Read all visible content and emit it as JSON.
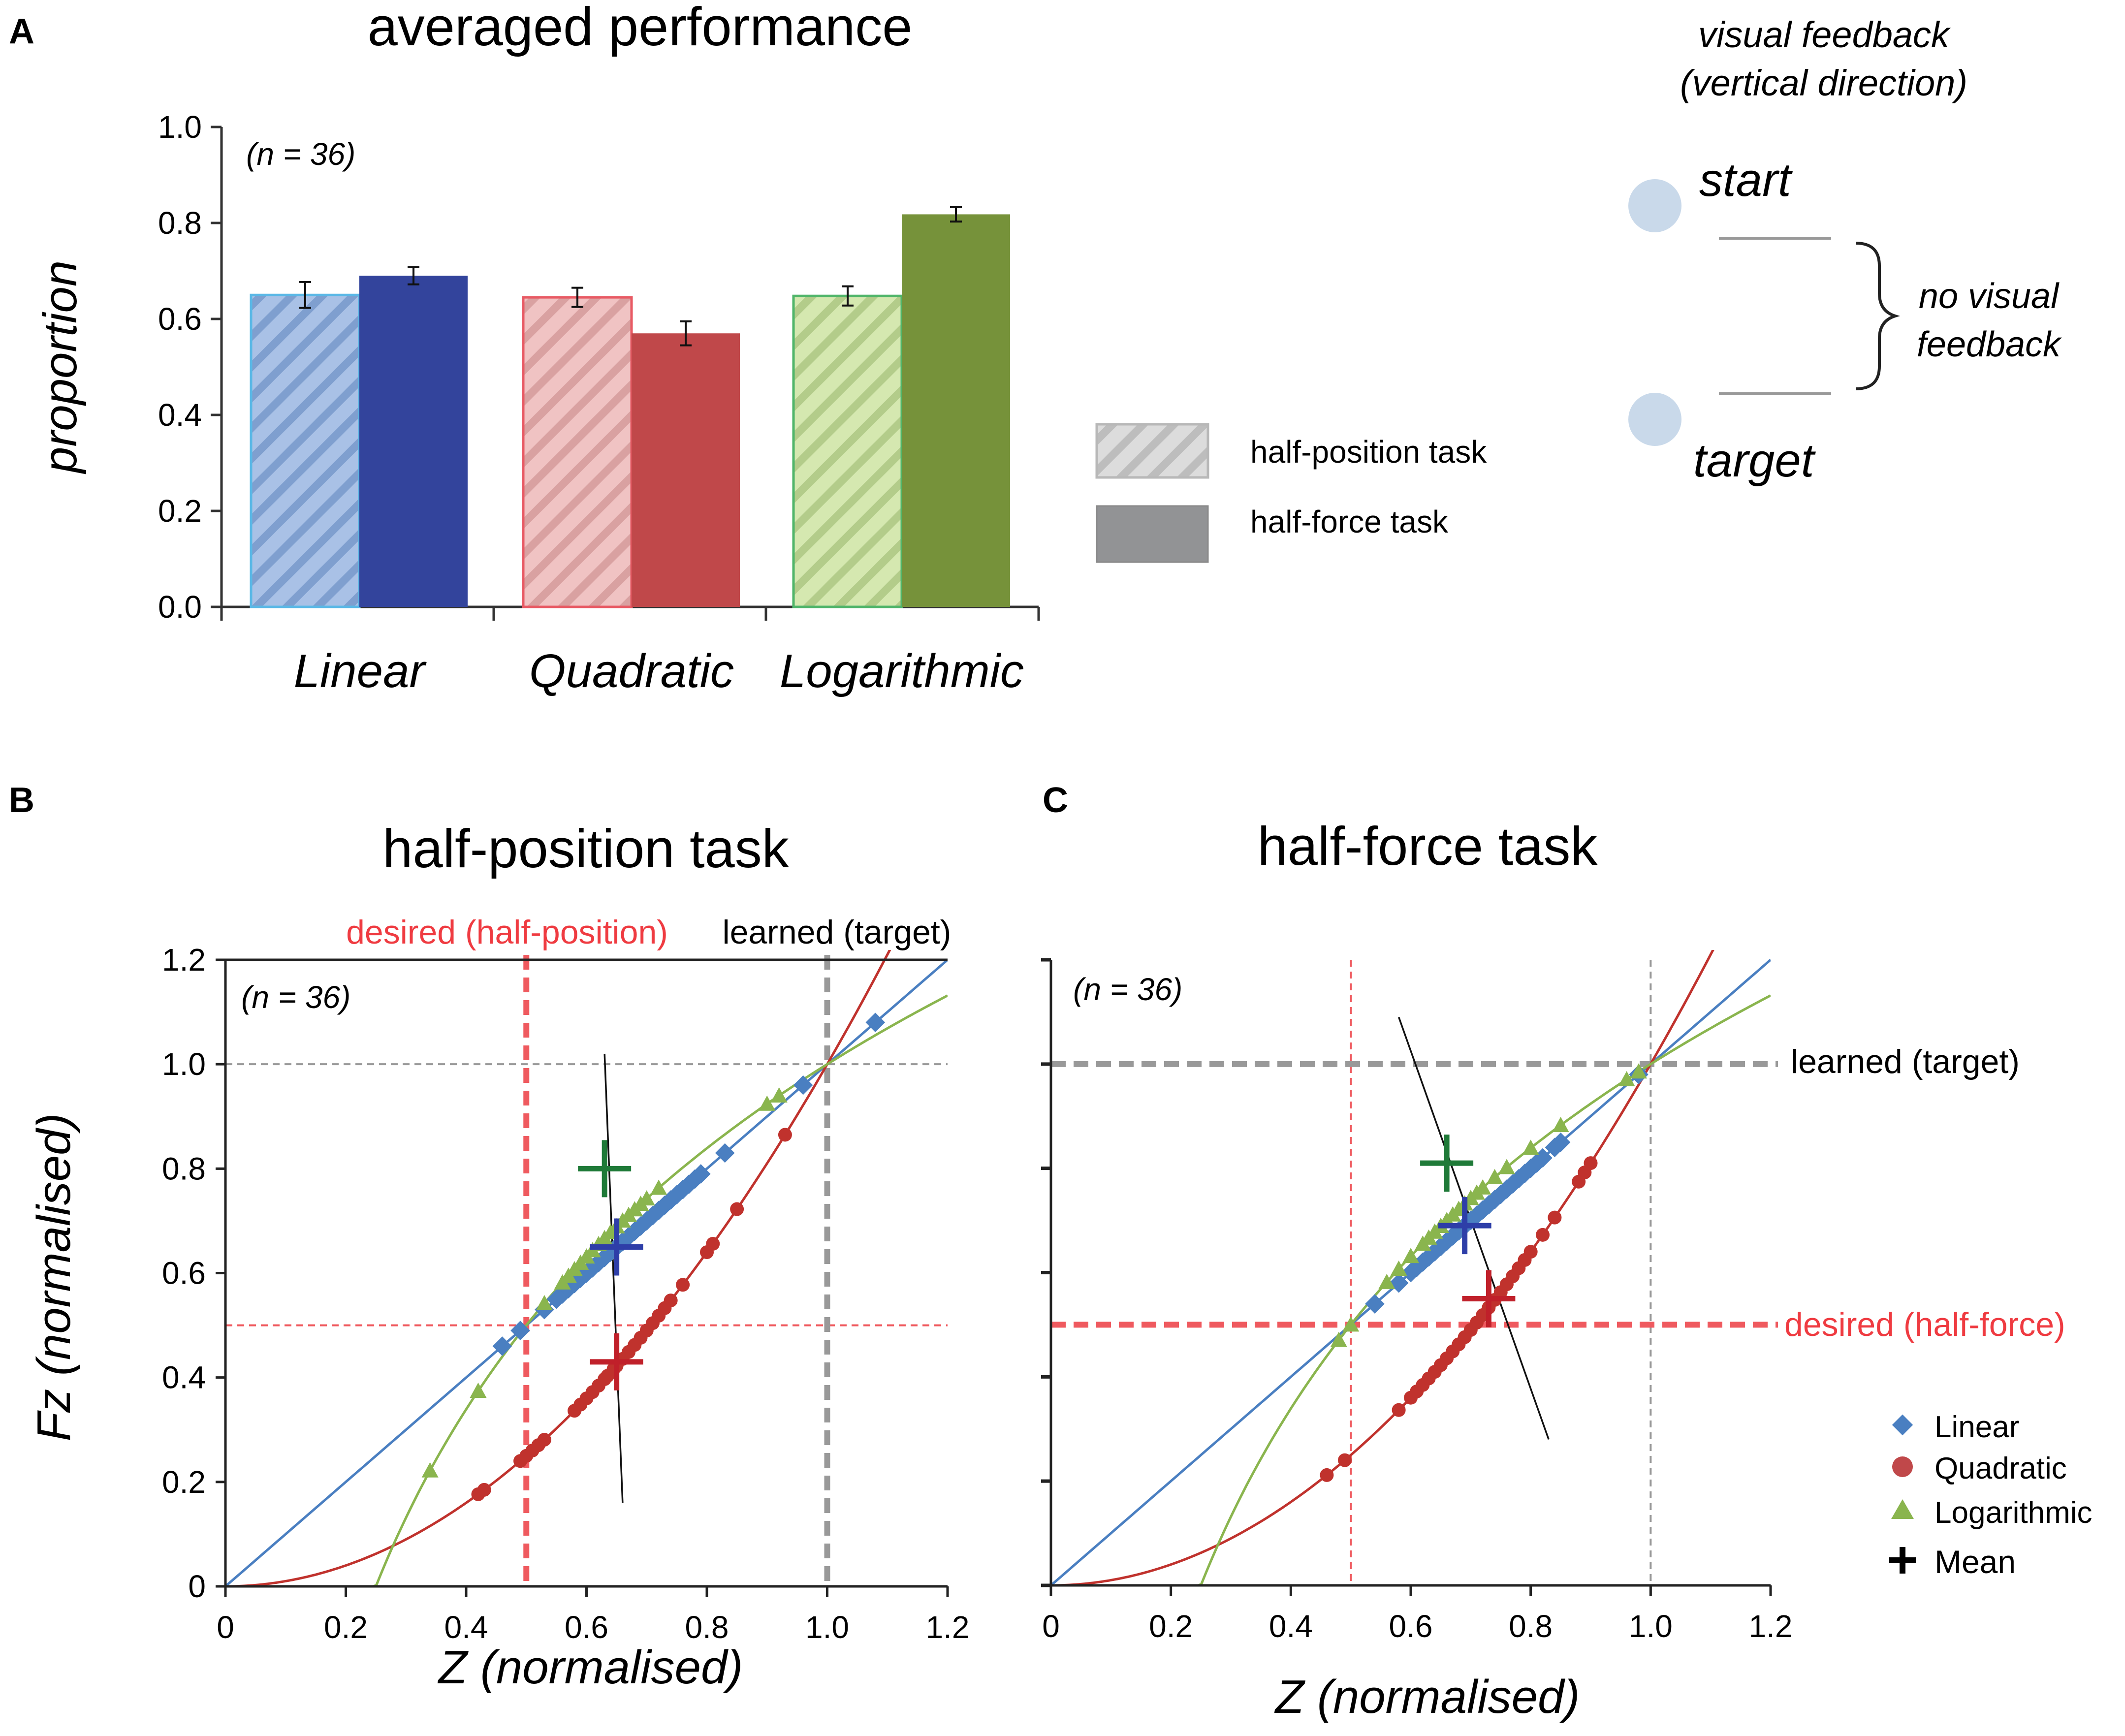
{
  "panel_letters": [
    "A",
    "B",
    "C"
  ],
  "colors": {
    "linear": "#4a7fc1",
    "linear_dark": "#33449c",
    "quadratic": "#c0484a",
    "quadratic_dark": "#c0322d",
    "quadratic_light": "#e9b3b3",
    "logarithmic": "#8ab54e",
    "logarithmic_dark": "#76923a",
    "logarithmic_light": "#cfe3a7",
    "linear_light": "#a9c1e6",
    "mean_linear": "#2e3ea8",
    "mean_quadratic": "#c0202a",
    "mean_logarithmic": "#1f7a38",
    "desired": "#ef5a5f",
    "learned": "#999999"
  },
  "feedback": {
    "title_line1": "visual feedback",
    "title_line2": "(vertical direction)",
    "start_label": "start",
    "target_label": "target",
    "no_feedback_line1": "no visual",
    "no_feedback_line2": "feedback"
  },
  "legend_a": {
    "hatched_label": "half-position task",
    "solid_label": "half-force task"
  },
  "legend_bc": {
    "items": [
      "Linear",
      "Quadratic",
      "Logarithmic",
      "Mean"
    ]
  },
  "chart_data": [
    {
      "id": "A",
      "type": "bar",
      "title": "averaged performance",
      "annotation": "(n = 36)",
      "xlabel": "",
      "ylabel": "proportion",
      "ylim": [
        0,
        1.0
      ],
      "yticks": [
        "0.0",
        "0.2",
        "0.4",
        "0.6",
        "0.8",
        "1.0"
      ],
      "categories": [
        "Linear",
        "Quadratic",
        "Logarithmic"
      ],
      "series": [
        {
          "name": "half-position task",
          "values": [
            0.65,
            0.645,
            0.648
          ],
          "errors": [
            0.027,
            0.02,
            0.02
          ]
        },
        {
          "name": "half-force task",
          "values": [
            0.69,
            0.57,
            0.818
          ],
          "errors": [
            0.018,
            0.025,
            0.015
          ]
        }
      ]
    },
    {
      "id": "B",
      "type": "scatter",
      "title": "half-position task",
      "annotation": "(n = 36)",
      "xlabel": "Z (normalised)",
      "ylabel": "Fz (normalised)",
      "xlim": [
        0,
        1.2
      ],
      "ylim": [
        0,
        1.2
      ],
      "xticks": [
        "0",
        "0.2",
        "0.4",
        "0.6",
        "0.8",
        "1.0",
        "1.2"
      ],
      "yticks": [
        "0",
        "0.2",
        "0.4",
        "0.6",
        "0.8",
        "1.0",
        "1.2"
      ],
      "desired_label": "desired (half-position)",
      "learned_label": "learned (target)",
      "desired_line": {
        "axis": "x",
        "value": 0.5
      },
      "learned_line": {
        "axis": "x",
        "value": 1.0
      },
      "thin_guides": [
        {
          "axis": "y",
          "value": 1.0,
          "color": "learned"
        },
        {
          "axis": "y",
          "value": 0.5,
          "color": "desired"
        }
      ],
      "series": [
        {
          "name": "Linear",
          "x": [
            0.46,
            0.49,
            0.53,
            0.55,
            0.56,
            0.57,
            0.58,
            0.59,
            0.6,
            0.61,
            0.62,
            0.63,
            0.64,
            0.65,
            0.66,
            0.67,
            0.68,
            0.69,
            0.7,
            0.71,
            0.72,
            0.73,
            0.74,
            0.75,
            0.76,
            0.77,
            0.78,
            0.79,
            0.83,
            0.96,
            1.08
          ]
        },
        {
          "name": "Quadratic",
          "x": [
            0.42,
            0.43,
            0.49,
            0.5,
            0.51,
            0.52,
            0.53,
            0.58,
            0.59,
            0.6,
            0.61,
            0.62,
            0.63,
            0.635,
            0.645,
            0.65,
            0.66,
            0.67,
            0.68,
            0.69,
            0.7,
            0.71,
            0.72,
            0.73,
            0.74,
            0.76,
            0.8,
            0.81,
            0.85,
            0.93
          ]
        },
        {
          "name": "Logarithmic",
          "x": [
            0.34,
            0.42,
            0.53,
            0.56,
            0.57,
            0.58,
            0.59,
            0.6,
            0.61,
            0.62,
            0.63,
            0.64,
            0.65,
            0.66,
            0.67,
            0.68,
            0.69,
            0.7,
            0.72,
            0.9,
            0.92
          ]
        }
      ],
      "means": [
        {
          "series": "Linear",
          "x": 0.65,
          "y": 0.65
        },
        {
          "series": "Quadratic",
          "x": 0.65,
          "y": 0.43
        },
        {
          "series": "Logarithmic",
          "x": 0.63,
          "y": 0.8
        }
      ],
      "regression": {
        "x1": 0.63,
        "y1": 1.02,
        "x2": 0.66,
        "y2": 0.16
      }
    },
    {
      "id": "C",
      "type": "scatter",
      "title": "half-force task",
      "annotation": "(n = 36)",
      "xlabel": "Z (normalised)",
      "ylabel": "",
      "xlim": [
        0,
        1.2
      ],
      "ylim": [
        0,
        1.2
      ],
      "xticks": [
        "0",
        "0.2",
        "0.4",
        "0.6",
        "0.8",
        "1.0",
        "1.2"
      ],
      "desired_label": "desired (half-force)",
      "learned_label": "learned (target)",
      "desired_line": {
        "axis": "y",
        "value": 0.5
      },
      "learned_line": {
        "axis": "y",
        "value": 1.0
      },
      "thin_guides": [
        {
          "axis": "x",
          "value": 0.5,
          "color": "desired"
        },
        {
          "axis": "x",
          "value": 1.0,
          "color": "learned"
        }
      ],
      "series": [
        {
          "name": "Linear",
          "x": [
            0.54,
            0.58,
            0.6,
            0.61,
            0.62,
            0.63,
            0.64,
            0.65,
            0.66,
            0.67,
            0.68,
            0.69,
            0.7,
            0.71,
            0.72,
            0.73,
            0.74,
            0.75,
            0.76,
            0.77,
            0.78,
            0.79,
            0.8,
            0.81,
            0.82,
            0.84,
            0.85,
            0.98
          ]
        },
        {
          "name": "Quadratic",
          "x": [
            0.46,
            0.49,
            0.58,
            0.6,
            0.61,
            0.62,
            0.63,
            0.64,
            0.65,
            0.66,
            0.67,
            0.68,
            0.69,
            0.7,
            0.71,
            0.72,
            0.73,
            0.74,
            0.75,
            0.76,
            0.77,
            0.78,
            0.79,
            0.8,
            0.82,
            0.84,
            0.88,
            0.89,
            0.9
          ]
        },
        {
          "name": "Logarithmic",
          "x": [
            0.48,
            0.5,
            0.56,
            0.58,
            0.6,
            0.62,
            0.63,
            0.64,
            0.65,
            0.66,
            0.67,
            0.68,
            0.69,
            0.7,
            0.71,
            0.72,
            0.74,
            0.76,
            0.8,
            0.85,
            0.96,
            0.98
          ]
        }
      ],
      "means": [
        {
          "series": "Linear",
          "x": 0.69,
          "y": 0.69
        },
        {
          "series": "Quadratic",
          "x": 0.73,
          "y": 0.55
        },
        {
          "series": "Logarithmic",
          "x": 0.66,
          "y": 0.81
        }
      ],
      "regression": {
        "x1": 0.58,
        "y1": 1.09,
        "x2": 0.83,
        "y2": 0.28
      }
    }
  ]
}
